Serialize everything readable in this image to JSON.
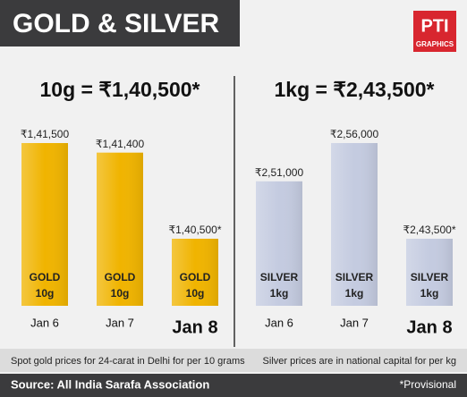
{
  "header": {
    "title": "GOLD & SILVER",
    "logo": "PTI",
    "logo_sub": "GRAPHICS"
  },
  "chart_data": [
    {
      "type": "bar",
      "title": "10g = ₹1,40,500*",
      "color": "#f0b400",
      "categories": [
        "Jan 6",
        "Jan 7",
        "Jan 8"
      ],
      "values": [
        141500,
        141400,
        140500
      ],
      "value_labels": [
        "₹1,41,500",
        "₹1,41,400",
        "₹1,40,500*"
      ],
      "bar_label": "GOLD",
      "bar_unit": "10g",
      "note": "Spot gold prices for 24-carat in Delhi for per 10 grams"
    },
    {
      "type": "bar",
      "title": "1kg = ₹2,43,500*",
      "color": "#c4cbe0",
      "categories": [
        "Jan 6",
        "Jan 7",
        "Jan 8"
      ],
      "values": [
        251000,
        256000,
        243500
      ],
      "value_labels": [
        "₹2,51,000",
        "₹2,56,000",
        "₹2,43,500*"
      ],
      "bar_label": "SILVER",
      "bar_unit": "1kg",
      "note": "Silver prices are in national capital for per kg"
    }
  ],
  "footer": {
    "source": "Source: All India Sarafa Association",
    "provisional": "*Provisional"
  }
}
